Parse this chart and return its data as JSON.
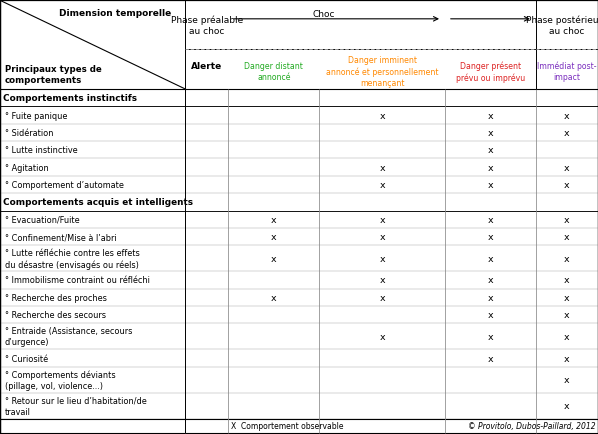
{
  "col_headers": [
    {
      "text": "Danger distant\nannoncé",
      "color": "#22aa22"
    },
    {
      "text": "Danger imminent\nannoncé et personnellement\nmenançant",
      "color": "#ff8800"
    },
    {
      "text": "Danger présent\nprévu ou imprévu",
      "color": "#dd2222"
    },
    {
      "text": "Immédiat post-\nimpact",
      "color": "#7b2fbe"
    }
  ],
  "section1_title": "Comportements instinctifs",
  "section1_rows": [
    {
      "label": "° Fuite panique",
      "cols": [
        0,
        0,
        1,
        1,
        1
      ]
    },
    {
      "label": "° Sidération",
      "cols": [
        0,
        0,
        0,
        1,
        1
      ]
    },
    {
      "label": "° Lutte instinctive",
      "cols": [
        0,
        0,
        0,
        1,
        0
      ]
    },
    {
      "label": "° Agitation",
      "cols": [
        0,
        0,
        1,
        1,
        1
      ]
    },
    {
      "label": "° Comportement d’automate",
      "cols": [
        0,
        0,
        1,
        1,
        1
      ]
    }
  ],
  "section2_title": "Comportements acquis et intelligents",
  "section2_rows": [
    {
      "label": "° Evacuation/Fuite",
      "cols": [
        0,
        1,
        1,
        1,
        1
      ]
    },
    {
      "label": "° Confinement/Mise à l’abri",
      "cols": [
        0,
        1,
        1,
        1,
        1
      ]
    },
    {
      "label": "° Lutte réfléchie contre les effets\ndu désastre (envisagés ou réels)",
      "cols": [
        0,
        1,
        1,
        1,
        1
      ]
    },
    {
      "label": "° Immobilisme contraint ou réfléchi",
      "cols": [
        0,
        0,
        1,
        1,
        1
      ]
    },
    {
      "label": "° Recherche des proches",
      "cols": [
        0,
        1,
        1,
        1,
        1
      ]
    },
    {
      "label": "° Recherche des secours",
      "cols": [
        0,
        0,
        0,
        1,
        1
      ]
    },
    {
      "label": "° Entraide (Assistance, secours\nd’urgence)",
      "cols": [
        0,
        0,
        1,
        1,
        1
      ]
    },
    {
      "label": "° Curiosité",
      "cols": [
        0,
        0,
        0,
        1,
        1
      ]
    },
    {
      "label": "° Comportements déviants\n(pillage, vol, violence...)",
      "cols": [
        0,
        0,
        0,
        0,
        1
      ]
    },
    {
      "label": "° Retour sur le lieu d’habitation/de\ntravail",
      "cols": [
        0,
        0,
        0,
        0,
        1
      ]
    }
  ],
  "footer_left": "X  Comportement observable",
  "footer_right": "© Provitolo, Dubos-Paillard, 2012"
}
